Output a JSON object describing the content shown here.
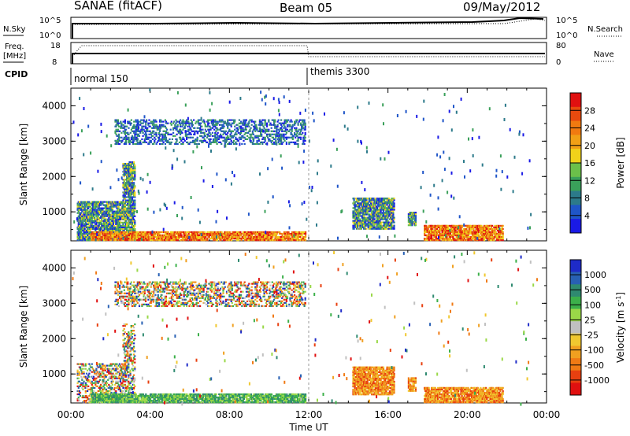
{
  "header": {
    "left": "SANAE (fitACF)",
    "center": "Beam 05",
    "right": "09/May/2012"
  },
  "strip": {
    "nsky_label": "N.Sky",
    "nsky_ticks": [
      "10^5",
      "10^0"
    ],
    "nsearch_label": "N.Search",
    "nsearch_ticks": [
      "10^5",
      "10^0"
    ],
    "freq_label": "Freq.",
    "freq_unit": "[MHz]",
    "freq_ticks": [
      "18",
      "8"
    ],
    "nave_label": "Nave",
    "nave_ticks": [
      "80",
      "0"
    ],
    "cpid_label": "CPID",
    "cpid_segments": [
      "normal 150",
      "themis 3300"
    ]
  },
  "chart_data": [
    {
      "type": "heatmap",
      "panel": "power",
      "ylabel": "Slant Range [km]",
      "yticks": [
        "4000",
        "3000",
        "2000",
        "1000"
      ],
      "ylim": [
        180,
        4500
      ],
      "xlim": [
        0,
        24
      ],
      "colorbar": {
        "label": "Power [dB]",
        "ticks": [
          "28",
          "24",
          "20",
          "16",
          "12",
          "8",
          "4"
        ],
        "colors": [
          "#1a1ae6",
          "#1f55c8",
          "#2c7a8a",
          "#3aa05a",
          "#6bc04a",
          "#f0d21a",
          "#f0a016",
          "#f07a10",
          "#e84a0e",
          "#e01010"
        ]
      },
      "regions": [
        {
          "t0": 0.3,
          "t1": 2.6,
          "r0": 180,
          "r1": 1300,
          "level": "mid"
        },
        {
          "t0": 2.6,
          "t1": 3.2,
          "r0": 180,
          "r1": 2400,
          "level": "mid"
        },
        {
          "t0": 1.0,
          "t1": 11.8,
          "r0": 180,
          "r1": 450,
          "level": "high"
        },
        {
          "t0": 2.2,
          "t1": 11.8,
          "r0": 2900,
          "r1": 3600,
          "level": "low"
        },
        {
          "t0": 14.2,
          "t1": 16.3,
          "r0": 500,
          "r1": 1400,
          "level": "mid"
        },
        {
          "t0": 17.0,
          "t1": 17.4,
          "r0": 600,
          "r1": 1000,
          "level": "mid"
        },
        {
          "t0": 17.8,
          "t1": 21.8,
          "r0": 180,
          "r1": 600,
          "level": "high"
        }
      ]
    },
    {
      "type": "heatmap",
      "panel": "velocity",
      "ylabel": "Slant Range [km]",
      "yticks": [
        "4000",
        "3000",
        "2000",
        "1000"
      ],
      "ylim": [
        180,
        4500
      ],
      "xlim": [
        0,
        24
      ],
      "xticks": [
        "00:00",
        "04:00",
        "08:00",
        "12:00",
        "16:00",
        "20:00",
        "00:00"
      ],
      "xlabel": "Time UT",
      "colorbar": {
        "label": "Velocity [m s",
        "label_sup": "-1",
        "label_end": "]",
        "ticks": [
          "1000",
          "500",
          "100",
          "25",
          "-25",
          "-100",
          "-500",
          "-1000"
        ],
        "colors": [
          "#1e2bc8",
          "#2860b4",
          "#2f8a70",
          "#3cb04a",
          "#9ad848",
          "#c0c0c0",
          "#f0c830",
          "#f0a020",
          "#f07a14",
          "#e84010",
          "#e01010"
        ]
      },
      "regions": [
        {
          "t0": 0.3,
          "t1": 2.6,
          "r0": 180,
          "r1": 1300,
          "level": "mixed"
        },
        {
          "t0": 2.6,
          "t1": 3.2,
          "r0": 180,
          "r1": 2400,
          "level": "mixed"
        },
        {
          "t0": 1.0,
          "t1": 11.8,
          "r0": 180,
          "r1": 450,
          "level": "green"
        },
        {
          "t0": 2.2,
          "t1": 11.8,
          "r0": 2900,
          "r1": 3600,
          "level": "mixed"
        },
        {
          "t0": 14.2,
          "t1": 16.3,
          "r0": 400,
          "r1": 1200,
          "level": "orange"
        },
        {
          "t0": 17.0,
          "t1": 17.4,
          "r0": 500,
          "r1": 900,
          "level": "orange"
        },
        {
          "t0": 17.8,
          "t1": 21.8,
          "r0": 180,
          "r1": 600,
          "level": "orange"
        }
      ]
    }
  ]
}
